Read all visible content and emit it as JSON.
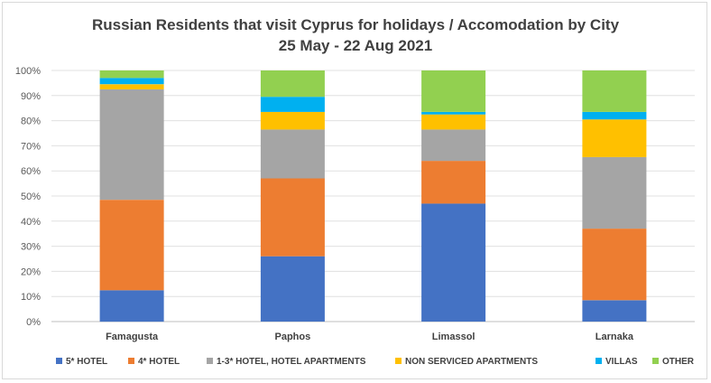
{
  "chart_data": {
    "type": "bar",
    "stacked": true,
    "normalized": true,
    "title": "Russian Residents that visit Cyprus for holidays / Accomodation by City",
    "subtitle": "25 May - 22 Aug 2021",
    "categories": [
      "Famagusta",
      "Paphos",
      "Limassol",
      "Larnaka"
    ],
    "yticks": [
      "0%",
      "10%",
      "20%",
      "30%",
      "40%",
      "50%",
      "60%",
      "70%",
      "80%",
      "90%",
      "100%"
    ],
    "ylim": [
      0,
      100
    ],
    "grid": true,
    "legend_position": "bottom",
    "series": [
      {
        "name": "5* HOTEL",
        "color": "#4472c4",
        "values": [
          12.5,
          26,
          47,
          8.5
        ]
      },
      {
        "name": "4* HOTEL",
        "color": "#ed7d31",
        "values": [
          36,
          31,
          17,
          28.5
        ]
      },
      {
        "name": "1-3* HOTEL, HOTEL APARTMENTS",
        "color": "#a5a5a5",
        "values": [
          44,
          19.5,
          12.5,
          28.5
        ]
      },
      {
        "name": "NON SERVICED APARTMENTS",
        "color": "#ffc000",
        "values": [
          2,
          7,
          6,
          15
        ]
      },
      {
        "name": "VILLAS",
        "color": "#00b0f0",
        "values": [
          2.5,
          6,
          1,
          3
        ]
      },
      {
        "name": "OTHER",
        "color": "#92d050",
        "values": [
          3,
          10.5,
          16.5,
          16.5
        ]
      }
    ]
  }
}
